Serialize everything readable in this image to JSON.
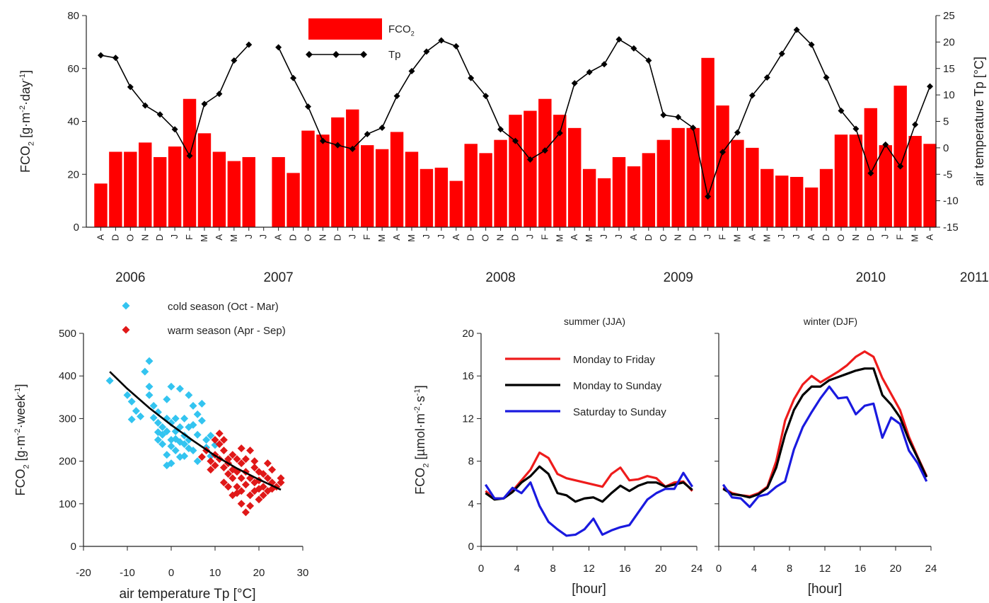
{
  "chart_data": [
    {
      "type": "bar",
      "panel": "monthly",
      "ylabel_left": {
        "main": "FCO",
        "sub": "2",
        "rest": " [g·m",
        "sup1": "-2",
        "mid": "·day",
        "sup2": "-1",
        "end": "]"
      },
      "ylabel_right": "air temperature Tp [°C]",
      "yticks_left": [
        "0",
        "20",
        "40",
        "60",
        "80"
      ],
      "yticks_right": [
        "-15",
        "-10",
        "-5",
        "0",
        "5",
        "10",
        "15",
        "20",
        "25"
      ],
      "ylim_left": [
        0,
        80
      ],
      "ylim_right": [
        -15,
        25
      ],
      "legend": [
        {
          "main": "FCO",
          "sub": "2",
          "kind": "bar",
          "color": "#ff0000"
        },
        {
          "main": "Tp",
          "sub": "",
          "kind": "line",
          "color": "#000000"
        }
      ],
      "legend_position": "top-center",
      "month_labels": [
        "A",
        "D",
        "O",
        "N",
        "D",
        "J",
        "F",
        "M",
        "A",
        "M",
        "J",
        "J",
        "A",
        "D",
        "O",
        "N",
        "D",
        "J",
        "F",
        "M",
        "A",
        "M",
        "J",
        "J",
        "A",
        "D",
        "O",
        "N",
        "D",
        "J",
        "F",
        "M",
        "A",
        "M",
        "J",
        "J",
        "A",
        "D",
        "O",
        "N",
        "D",
        "J",
        "F",
        "M",
        "A",
        "M",
        "J",
        "J",
        "A",
        "D",
        "O",
        "N",
        "D",
        "J",
        "F",
        "M",
        "A"
      ],
      "years": [
        {
          "label": "2006",
          "index": 2
        },
        {
          "label": "2007",
          "index": 12
        },
        {
          "label": "2008",
          "index": 27
        },
        {
          "label": "2009",
          "index": 39
        },
        {
          "label": "2010",
          "index": 52
        },
        {
          "label": "2011",
          "index": 59
        }
      ],
      "fco2": [
        16.5,
        28.5,
        28.5,
        32,
        26.5,
        30.5,
        48.5,
        35.5,
        28.5,
        25,
        26.5,
        null,
        26.5,
        20.5,
        36.5,
        35,
        41.5,
        44.5,
        31,
        29.5,
        36,
        28.5,
        22,
        22.5,
        17.5,
        31.5,
        28,
        33,
        42.5,
        44,
        48.5,
        42.5,
        37.5,
        22,
        18.5,
        26.5,
        23,
        28,
        33,
        37.5,
        37.5,
        64,
        46,
        33,
        30,
        22,
        19.5,
        19,
        15,
        22,
        35,
        35,
        45,
        31,
        53.5,
        34.5,
        31.5
      ],
      "tp": [
        17.5,
        17,
        11.5,
        8,
        6.3,
        3.5,
        -1.5,
        8.3,
        10.2,
        16.5,
        19.5,
        null,
        19,
        13.2,
        7.8,
        1.3,
        0.5,
        -0.2,
        2.6,
        3.8,
        9.8,
        14.5,
        18.2,
        20.3,
        19.2,
        13.2,
        9.8,
        3.5,
        1.3,
        -2.2,
        -0.5,
        2.8,
        12.2,
        14.3,
        15.8,
        20.5,
        18.8,
        16.5,
        6.2,
        5.8,
        3.8,
        -9.2,
        -0.8,
        2.9,
        9.9,
        13.3,
        17.8,
        22.3,
        19.5,
        13.3,
        7,
        3.6,
        -4.8,
        0.6,
        -3.5,
        4.4,
        11.6
      ]
    },
    {
      "type": "scatter",
      "panel": "weekly",
      "ylabel": {
        "main": "FCO",
        "sub": "2",
        "rest": " [g·m",
        "sup1": "-2",
        "mid": "·week",
        "sup2": "-1",
        "end": "]"
      },
      "xlabel": "air temperature Tp [°C]",
      "xlim": [
        -20,
        30
      ],
      "ylim": [
        0,
        500
      ],
      "xticks": [
        "-20",
        "-10",
        "0",
        "10",
        "20",
        "30"
      ],
      "yticks": [
        "0",
        "100",
        "200",
        "300",
        "400",
        "500"
      ],
      "legend_position": "top",
      "series": [
        {
          "name": "cold season (Oct - Mar)",
          "color": "#33c4f0",
          "points": [
            [
              -14,
              389
            ],
            [
              -10,
              355
            ],
            [
              -9,
              340
            ],
            [
              -8,
              318
            ],
            [
              -7,
              305
            ],
            [
              -9,
              298
            ],
            [
              -6,
              410
            ],
            [
              -5,
              435
            ],
            [
              -5,
              375
            ],
            [
              -5,
              355
            ],
            [
              -4,
              330
            ],
            [
              -4,
              302
            ],
            [
              -3,
              315
            ],
            [
              -3,
              290
            ],
            [
              -2,
              280
            ],
            [
              -2,
              262
            ],
            [
              -1,
              345
            ],
            [
              -1,
              300
            ],
            [
              -1,
              270
            ],
            [
              0,
              375
            ],
            [
              0,
              290
            ],
            [
              0,
              250
            ],
            [
              0,
              235
            ],
            [
              -1,
              215
            ],
            [
              0,
              195
            ],
            [
              1,
              300
            ],
            [
              1,
              270
            ],
            [
              1,
              252
            ],
            [
              1,
              225
            ],
            [
              2,
              370
            ],
            [
              2,
              280
            ],
            [
              2,
              245
            ],
            [
              3,
              300
            ],
            [
              3,
              260
            ],
            [
              3,
              240
            ],
            [
              3,
              212
            ],
            [
              4,
              355
            ],
            [
              4,
              280
            ],
            [
              4,
              250
            ],
            [
              5,
              330
            ],
            [
              5,
              285
            ],
            [
              5,
              225
            ],
            [
              6,
              310
            ],
            [
              6,
              262
            ],
            [
              6,
              200
            ],
            [
              7,
              335
            ],
            [
              7,
              295
            ],
            [
              8,
              250
            ],
            [
              8,
              232
            ],
            [
              9,
              260
            ],
            [
              9,
              212
            ],
            [
              10,
              238
            ],
            [
              -2,
              240
            ],
            [
              -3,
              250
            ],
            [
              2,
              210
            ],
            [
              -1,
              190
            ],
            [
              -3,
              268
            ],
            [
              4,
              230
            ]
          ]
        },
        {
          "name": "warm season (Apr - Sep)",
          "color": "#e01818",
          "points": [
            [
              7,
              210
            ],
            [
              8,
              225
            ],
            [
              9,
              200
            ],
            [
              9,
              180
            ],
            [
              10,
              250
            ],
            [
              10,
              215
            ],
            [
              10,
              190
            ],
            [
              11,
              265
            ],
            [
              11,
              240
            ],
            [
              11,
              205
            ],
            [
              12,
              225
            ],
            [
              12,
              185
            ],
            [
              12,
              150
            ],
            [
              13,
              195
            ],
            [
              13,
              170
            ],
            [
              13,
              140
            ],
            [
              14,
              215
            ],
            [
              14,
              180
            ],
            [
              14,
              160
            ],
            [
              14,
              120
            ],
            [
              15,
              205
            ],
            [
              15,
              175
            ],
            [
              15,
              140
            ],
            [
              16,
              195
            ],
            [
              16,
              160
            ],
            [
              16,
              130
            ],
            [
              16,
              100
            ],
            [
              17,
              175
            ],
            [
              17,
              145
            ],
            [
              17,
              80
            ],
            [
              18,
              225
            ],
            [
              18,
              160
            ],
            [
              18,
              120
            ],
            [
              19,
              185
            ],
            [
              19,
              150
            ],
            [
              19,
              130
            ],
            [
              20,
              175
            ],
            [
              20,
              155
            ],
            [
              20,
              110
            ],
            [
              21,
              170
            ],
            [
              21,
              140
            ],
            [
              22,
              195
            ],
            [
              22,
              160
            ],
            [
              22,
              130
            ],
            [
              23,
              150
            ],
            [
              23,
              135
            ],
            [
              24,
              140
            ],
            [
              25,
              160
            ],
            [
              25,
              150
            ],
            [
              12,
              250
            ],
            [
              15,
              125
            ],
            [
              18,
              95
            ],
            [
              20,
              135
            ],
            [
              21,
              120
            ],
            [
              13,
              205
            ],
            [
              17,
              205
            ],
            [
              19,
              200
            ],
            [
              16,
              230
            ],
            [
              23,
              180
            ]
          ]
        }
      ],
      "fit_curve": [
        [
          -14,
          410
        ],
        [
          -10,
          370
        ],
        [
          -5,
          325
        ],
        [
          0,
          285
        ],
        [
          5,
          248
        ],
        [
          10,
          213
        ],
        [
          15,
          183
        ],
        [
          20,
          157
        ],
        [
          25,
          133
        ]
      ]
    },
    {
      "type": "line",
      "panel": "summer",
      "title": "summer (JJA)",
      "ylabel": {
        "main": "FCO",
        "sub": "2",
        "rest": " [µmol·m",
        "sup1": "-2",
        "mid": "·s",
        "sup2": "-1",
        "end": "]"
      },
      "xlabel": "[hour]",
      "xlim": [
        0,
        24
      ],
      "ylim": [
        0,
        20
      ],
      "xticks": [
        "0",
        "4",
        "8",
        "12",
        "16",
        "20",
        "24"
      ],
      "yticks": [
        "0",
        "4",
        "8",
        "12",
        "16",
        "20"
      ],
      "legend_position": "top-left",
      "x": [
        0.5,
        1.5,
        2.5,
        3.5,
        4.5,
        5.5,
        6.5,
        7.5,
        8.5,
        9.5,
        10.5,
        11.5,
        12.5,
        13.5,
        14.5,
        15.5,
        16.5,
        17.5,
        18.5,
        19.5,
        20.5,
        21.5,
        22.5,
        23.5
      ],
      "series": [
        {
          "name": "Monday to Friday",
          "color": "#ee1c1c",
          "values": [
            5.2,
            4.5,
            4.5,
            5.2,
            6.2,
            7.2,
            8.8,
            8.3,
            6.8,
            6.4,
            6.2,
            6.0,
            5.8,
            5.6,
            6.8,
            7.4,
            6.2,
            6.3,
            6.6,
            6.4,
            5.6,
            6.0,
            6.1,
            5.2
          ]
        },
        {
          "name": "Monday to Sunday",
          "color": "#000000",
          "values": [
            5.0,
            4.4,
            4.5,
            5.1,
            6.0,
            6.6,
            7.5,
            6.8,
            5.0,
            4.8,
            4.2,
            4.5,
            4.6,
            4.2,
            5.0,
            5.7,
            5.2,
            5.7,
            6.0,
            6.0,
            5.6,
            5.8,
            6.0,
            5.3
          ]
        },
        {
          "name": "Saturday to Sunday",
          "color": "#1a1adf",
          "values": [
            5.8,
            4.5,
            4.5,
            5.5,
            5.0,
            6.0,
            3.8,
            2.3,
            1.6,
            1.0,
            1.1,
            1.6,
            2.6,
            1.1,
            1.5,
            1.8,
            2.0,
            3.2,
            4.4,
            5.0,
            5.4,
            5.4,
            6.9,
            5.6
          ]
        }
      ]
    },
    {
      "type": "line",
      "panel": "winter",
      "title": "winter (DJF)",
      "xlabel": "[hour]",
      "xlim": [
        0,
        24
      ],
      "ylim": [
        0,
        20
      ],
      "xticks": [
        "0",
        "4",
        "8",
        "12",
        "16",
        "20",
        "24"
      ],
      "x": [
        0.5,
        1.5,
        2.5,
        3.5,
        4.5,
        5.5,
        6.5,
        7.5,
        8.5,
        9.5,
        10.5,
        11.5,
        12.5,
        13.5,
        14.5,
        15.5,
        16.5,
        17.5,
        18.5,
        19.5,
        20.5,
        21.5,
        22.5,
        23.5
      ],
      "series": [
        {
          "name": "Monday to Friday",
          "color": "#ee1c1c",
          "values": [
            5.5,
            5.0,
            4.8,
            4.7,
            5.0,
            5.6,
            8.0,
            11.8,
            13.8,
            15.2,
            16.0,
            15.4,
            15.9,
            16.4,
            17.0,
            17.8,
            18.3,
            17.8,
            15.8,
            14.3,
            12.8,
            10.3,
            8.4,
            6.6
          ]
        },
        {
          "name": "Monday to Sunday",
          "color": "#000000",
          "values": [
            5.4,
            4.9,
            4.8,
            4.6,
            4.9,
            5.5,
            7.4,
            10.5,
            12.8,
            14.2,
            15.0,
            15.0,
            15.6,
            15.9,
            16.2,
            16.5,
            16.7,
            16.7,
            14.2,
            13.3,
            12.1,
            10.0,
            8.3,
            6.5
          ]
        },
        {
          "name": "Saturday to Sunday",
          "color": "#1a1adf",
          "values": [
            5.8,
            4.6,
            4.5,
            3.7,
            4.7,
            4.9,
            5.6,
            6.1,
            9.1,
            11.2,
            12.6,
            13.9,
            15.0,
            13.9,
            14.0,
            12.4,
            13.2,
            13.4,
            10.2,
            12.1,
            11.5,
            9.0,
            7.8,
            6.1
          ]
        }
      ]
    }
  ]
}
